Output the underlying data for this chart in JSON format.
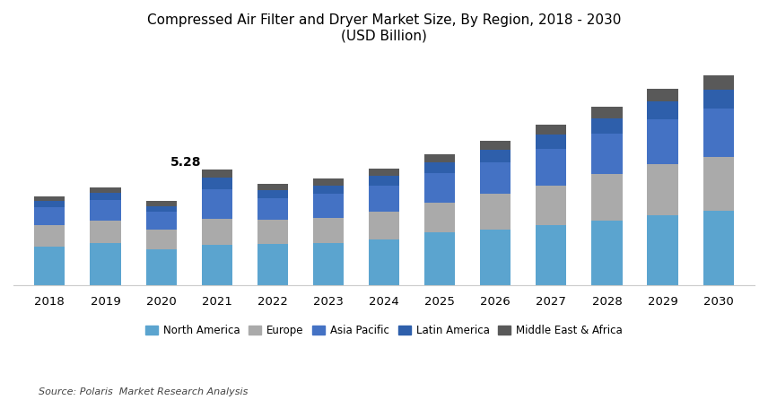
{
  "title_line1": "Compressed Air Filter and Dryer Market Size, By Region, 2018 - 2030",
  "title_line2": "(USD Billion)",
  "years": [
    2018,
    2019,
    2020,
    2021,
    2022,
    2023,
    2024,
    2025,
    2026,
    2027,
    2028,
    2029,
    2030
  ],
  "regions": [
    "North America",
    "Europe",
    "Asia Pacific",
    "Latin America",
    "Middle East & Africa"
  ],
  "colors": [
    "#5BA4CF",
    "#AAAAAA",
    "#4472C4",
    "#2E5FAB",
    "#595959"
  ],
  "data": {
    "North America": [
      1.75,
      1.9,
      1.65,
      1.85,
      1.88,
      1.92,
      2.1,
      2.4,
      2.55,
      2.75,
      2.95,
      3.2,
      3.38
    ],
    "Europe": [
      1.0,
      1.05,
      0.9,
      1.15,
      1.1,
      1.15,
      1.25,
      1.35,
      1.6,
      1.8,
      2.1,
      2.3,
      2.45
    ],
    "Asia Pacific": [
      0.8,
      0.92,
      0.78,
      1.35,
      1.0,
      1.1,
      1.2,
      1.35,
      1.45,
      1.65,
      1.85,
      2.05,
      2.2
    ],
    "Latin America": [
      0.28,
      0.32,
      0.27,
      0.55,
      0.34,
      0.38,
      0.42,
      0.5,
      0.57,
      0.65,
      0.72,
      0.82,
      0.88
    ],
    "Middle East & Africa": [
      0.22,
      0.28,
      0.22,
      0.38,
      0.28,
      0.3,
      0.33,
      0.37,
      0.42,
      0.47,
      0.52,
      0.58,
      0.64
    ]
  },
  "annotation_year": 2021,
  "annotation_text": "5.28",
  "source_text": "Source: Polaris  Market Research Analysis",
  "ylim": [
    0,
    10.5
  ],
  "background_color": "#FFFFFF",
  "bar_width": 0.55
}
